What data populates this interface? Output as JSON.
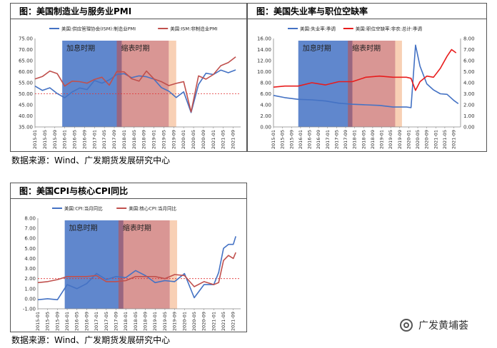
{
  "panels": [
    {
      "title": "图：美国制造业与服务业PMI"
    },
    {
      "title": "图：美国失业率与职位空缺率"
    },
    {
      "title": "图：美国CPI与核心CPI同比"
    }
  ],
  "source_text": "数据来源：Wind、广发期货发展研究中心",
  "watermark": "广发黄埔荟",
  "chart_data": [
    {
      "type": "line",
      "title": "图：美国制造业与服务业PMI",
      "x_ticks": [
        "2015-01",
        "2015-05",
        "2015-09",
        "2016-01",
        "2016-05",
        "2016-09",
        "2017-01",
        "2017-05",
        "2017-09",
        "2018-01",
        "2018-05",
        "2018-09",
        "2019-01",
        "2019-05",
        "2019-09",
        "2020-01",
        "2020-05",
        "2020-09",
        "2021-01",
        "2021-05",
        "2021-09"
      ],
      "ylim": [
        35,
        75
      ],
      "y_ticks": [
        "35.00",
        "40.00",
        "45.00",
        "50.00",
        "55.00",
        "60.00",
        "65.00",
        "70.00",
        "75.00"
      ],
      "reference_line": 50,
      "shaded_regions": [
        {
          "label": "加息时期",
          "start": "2015-12",
          "end": "2017-12",
          "color": "#4472c4"
        },
        {
          "label": "缩表时期",
          "start": "2017-10",
          "end": "2019-07",
          "color": "#c0504d"
        },
        {
          "label": "",
          "start": "2019-07",
          "end": "2019-10",
          "color": "#f4b183"
        }
      ],
      "legend_position": "top",
      "series": [
        {
          "name": "美国:供应管理协会(ISM):制造业PMI",
          "color": "#4472c4",
          "x": [
            "2015-01",
            "2015-04",
            "2015-07",
            "2015-10",
            "2016-01",
            "2016-04",
            "2016-07",
            "2016-10",
            "2017-01",
            "2017-04",
            "2017-07",
            "2017-10",
            "2018-01",
            "2018-04",
            "2018-07",
            "2018-10",
            "2019-01",
            "2019-04",
            "2019-07",
            "2019-10",
            "2020-01",
            "2020-04",
            "2020-07",
            "2020-10",
            "2021-01",
            "2021-04",
            "2021-07",
            "2021-10"
          ],
          "values": [
            53.5,
            51.5,
            52.7,
            50.1,
            48.2,
            50.8,
            52.6,
            51.9,
            56.0,
            54.8,
            56.3,
            58.7,
            59.1,
            57.3,
            58.1,
            57.7,
            56.6,
            52.8,
            51.2,
            48.3,
            50.9,
            41.5,
            54.2,
            59.3,
            58.7,
            60.7,
            59.5,
            60.8
          ]
        },
        {
          "name": "美国:ISM:非制造业PMI",
          "color": "#c0504d",
          "x": [
            "2015-01",
            "2015-04",
            "2015-07",
            "2015-10",
            "2016-01",
            "2016-04",
            "2016-07",
            "2016-10",
            "2017-01",
            "2017-04",
            "2017-07",
            "2017-10",
            "2018-01",
            "2018-04",
            "2018-07",
            "2018-10",
            "2019-01",
            "2019-04",
            "2019-07",
            "2019-10",
            "2020-01",
            "2020-04",
            "2020-07",
            "2020-10",
            "2021-01",
            "2021-04",
            "2021-07",
            "2021-10"
          ],
          "values": [
            56.7,
            57.8,
            60.3,
            59.1,
            53.5,
            55.7,
            55.5,
            54.8,
            56.5,
            57.5,
            53.9,
            60.1,
            59.9,
            56.8,
            55.7,
            60.3,
            56.7,
            55.5,
            53.7,
            54.7,
            55.5,
            41.8,
            58.1,
            56.6,
            58.7,
            62.7,
            64.1,
            66.7
          ]
        }
      ]
    },
    {
      "type": "line",
      "title": "图：美国失业率与职位空缺率",
      "x_ticks": [
        "2015-01",
        "2015-05",
        "2015-09",
        "2016-01",
        "2016-05",
        "2016-09",
        "2017-01",
        "2017-05",
        "2017-09",
        "2018-01",
        "2018-05",
        "2018-09",
        "2019-01",
        "2019-05",
        "2019-09",
        "2020-01",
        "2020-05",
        "2020-09",
        "2021-01",
        "2021-05",
        "2021-09"
      ],
      "ylim": [
        0,
        16
      ],
      "y_ticks": [
        "0.00",
        "2.00",
        "4.00",
        "6.00",
        "8.00",
        "10.00",
        "12.00",
        "14.00",
        "16.00"
      ],
      "y2lim": [
        0,
        8
      ],
      "y2_ticks": [
        "0.00",
        "1.00",
        "2.00",
        "3.00",
        "4.00",
        "5.00",
        "6.00",
        "7.00",
        "8.00"
      ],
      "shaded_regions": [
        {
          "label": "加息时期",
          "start": "2015-12",
          "end": "2017-12",
          "color": "#4472c4"
        },
        {
          "label": "缩表时期",
          "start": "2017-10",
          "end": "2019-07",
          "color": "#c0504d"
        },
        {
          "label": "",
          "start": "2019-07",
          "end": "2019-10",
          "color": "#f4b183"
        }
      ],
      "legend_position": "top",
      "series": [
        {
          "name": "美国:失业率:季调",
          "color": "#4472c4",
          "axis": "left",
          "x": [
            "2015-01",
            "2015-06",
            "2015-12",
            "2016-06",
            "2016-12",
            "2017-06",
            "2017-12",
            "2018-06",
            "2018-12",
            "2019-06",
            "2019-12",
            "2020-02",
            "2020-04",
            "2020-06",
            "2020-09",
            "2020-12",
            "2021-03",
            "2021-06",
            "2021-09",
            "2021-11"
          ],
          "values": [
            5.7,
            5.3,
            5.0,
            4.9,
            4.7,
            4.3,
            4.1,
            4.0,
            3.9,
            3.6,
            3.6,
            3.5,
            14.8,
            11.0,
            7.8,
            6.7,
            6.0,
            5.9,
            4.8,
            4.2
          ]
        },
        {
          "name": "美国:职位空缺率:非农:总计:季调",
          "color": "#e81c1c",
          "axis": "right",
          "x": [
            "2015-01",
            "2015-06",
            "2015-12",
            "2016-06",
            "2016-12",
            "2017-06",
            "2017-12",
            "2018-06",
            "2018-12",
            "2019-06",
            "2019-12",
            "2020-02",
            "2020-04",
            "2020-06",
            "2020-09",
            "2020-12",
            "2021-03",
            "2021-06",
            "2021-08",
            "2021-10"
          ],
          "values": [
            3.6,
            3.7,
            3.7,
            4.0,
            3.8,
            4.1,
            4.1,
            4.5,
            4.6,
            4.5,
            4.5,
            4.4,
            3.3,
            4.1,
            4.6,
            4.5,
            5.3,
            6.4,
            7.0,
            6.7
          ]
        }
      ]
    },
    {
      "type": "line",
      "title": "图：美国CPI与核心CPI同比",
      "x_ticks": [
        "2015-01",
        "2015-05",
        "2015-09",
        "2016-01",
        "2016-05",
        "2016-09",
        "2017-01",
        "2017-05",
        "2017-09",
        "2018-01",
        "2018-05",
        "2018-09",
        "2019-01",
        "2019-05",
        "2019-09",
        "2020-01",
        "2020-05",
        "2020-09",
        "2021-01",
        "2021-05",
        "2021-09"
      ],
      "ylim": [
        -1,
        8
      ],
      "y_ticks": [
        "-1.00",
        "0.00",
        "1.00",
        "2.00",
        "3.00",
        "4.00",
        "5.00",
        "6.00",
        "7.00",
        "8.00"
      ],
      "reference_line": 2,
      "shaded_regions": [
        {
          "label": "加息时期",
          "start": "2015-12",
          "end": "2017-12",
          "color": "#4472c4"
        },
        {
          "label": "缩表时期",
          "start": "2017-10",
          "end": "2019-07",
          "color": "#c0504d"
        },
        {
          "label": "",
          "start": "2019-07",
          "end": "2019-10",
          "color": "#f4b183"
        }
      ],
      "legend_position": "top",
      "series": [
        {
          "name": "美国:CPI:当月同比",
          "color": "#4472c4",
          "x": [
            "2015-01",
            "2015-05",
            "2015-09",
            "2016-01",
            "2016-05",
            "2016-09",
            "2017-01",
            "2017-05",
            "2017-09",
            "2018-01",
            "2018-05",
            "2018-09",
            "2019-01",
            "2019-05",
            "2019-09",
            "2020-01",
            "2020-05",
            "2020-09",
            "2021-01",
            "2021-03",
            "2021-05",
            "2021-07",
            "2021-09",
            "2021-10"
          ],
          "values": [
            -0.1,
            0.0,
            -0.1,
            1.4,
            1.0,
            1.5,
            2.5,
            1.9,
            2.2,
            2.1,
            2.8,
            2.3,
            1.6,
            1.8,
            1.7,
            2.5,
            0.1,
            1.4,
            1.4,
            2.6,
            5.0,
            5.4,
            5.4,
            6.2
          ]
        },
        {
          "name": "美国:核心CPI:当月同比",
          "color": "#c0504d",
          "x": [
            "2015-01",
            "2015-05",
            "2015-09",
            "2016-01",
            "2016-05",
            "2016-09",
            "2017-01",
            "2017-05",
            "2017-09",
            "2018-01",
            "2018-05",
            "2018-09",
            "2019-01",
            "2019-05",
            "2019-09",
            "2020-01",
            "2020-05",
            "2020-09",
            "2021-01",
            "2021-03",
            "2021-05",
            "2021-07",
            "2021-09",
            "2021-10"
          ],
          "values": [
            1.6,
            1.7,
            1.9,
            2.2,
            2.2,
            2.2,
            2.3,
            1.7,
            1.7,
            1.8,
            2.2,
            2.2,
            2.2,
            2.0,
            2.4,
            2.3,
            1.2,
            1.7,
            1.4,
            1.6,
            3.8,
            4.3,
            4.0,
            4.6
          ]
        }
      ]
    }
  ]
}
